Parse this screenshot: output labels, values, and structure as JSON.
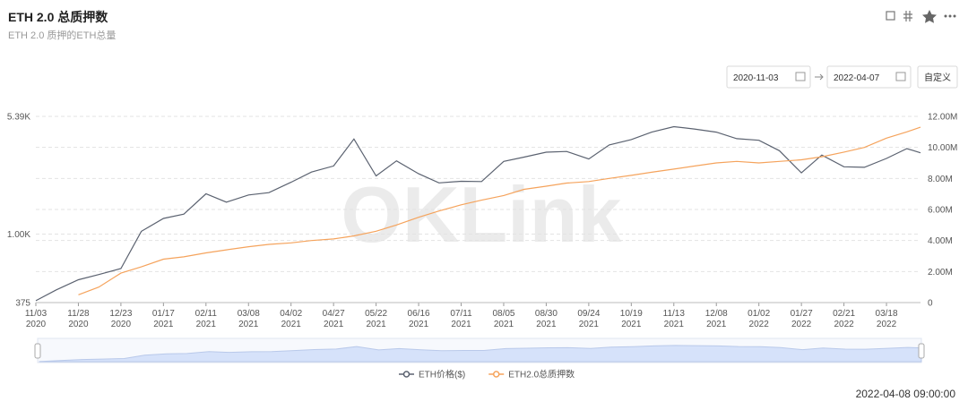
{
  "header": {
    "title": "ETH 2.0 总质押数",
    "subtitle": "ETH 2.0 质押的ETH总量"
  },
  "controls": {
    "start_date": "2020-11-03",
    "end_date": "2022-04-07",
    "custom": "自定义"
  },
  "footer": "2022-04-08 09:00:00",
  "chart_data": {
    "type": "line",
    "watermark": "OKLink",
    "x": [
      "2020-11-03",
      "2020-11-15",
      "2020-11-28",
      "2020-12-10",
      "2020-12-23",
      "2021-01-04",
      "2021-01-17",
      "2021-01-29",
      "2021-02-11",
      "2021-02-23",
      "2021-03-08",
      "2021-03-20",
      "2021-04-02",
      "2021-04-14",
      "2021-04-27",
      "2021-05-09",
      "2021-05-22",
      "2021-06-03",
      "2021-06-16",
      "2021-06-28",
      "2021-07-11",
      "2021-07-23",
      "2021-08-05",
      "2021-08-17",
      "2021-08-30",
      "2021-09-11",
      "2021-09-24",
      "2021-10-06",
      "2021-10-19",
      "2021-10-31",
      "2021-11-13",
      "2021-11-25",
      "2021-12-08",
      "2021-12-20",
      "2022-01-02",
      "2022-01-14",
      "2022-01-27",
      "2022-02-08",
      "2022-02-21",
      "2022-03-05",
      "2022-03-18",
      "2022-03-30",
      "2022-04-07"
    ],
    "xlim": [
      "2020-11-03",
      "2022-04-07"
    ],
    "xticks": [
      {
        "value": "2020-11-03",
        "label": "11/03 2020"
      },
      {
        "value": "2020-11-28",
        "label": "11/28 2020"
      },
      {
        "value": "2020-12-23",
        "label": "12/23 2020"
      },
      {
        "value": "2021-01-17",
        "label": "01/17 2021"
      },
      {
        "value": "2021-02-11",
        "label": "02/11 2021"
      },
      {
        "value": "2021-03-08",
        "label": "03/08 2021"
      },
      {
        "value": "2021-04-02",
        "label": "04/02 2021"
      },
      {
        "value": "2021-04-27",
        "label": "04/27 2021"
      },
      {
        "value": "2021-05-22",
        "label": "05/22 2021"
      },
      {
        "value": "2021-06-16",
        "label": "06/16 2021"
      },
      {
        "value": "2021-07-11",
        "label": "07/11 2021"
      },
      {
        "value": "2021-08-05",
        "label": "08/05 2021"
      },
      {
        "value": "2021-08-30",
        "label": "08/30 2021"
      },
      {
        "value": "2021-09-24",
        "label": "09/24 2021"
      },
      {
        "value": "2021-10-19",
        "label": "10/19 2021"
      },
      {
        "value": "2021-11-13",
        "label": "11/13 2021"
      },
      {
        "value": "2021-12-08",
        "label": "12/08 2021"
      },
      {
        "value": "2022-01-02",
        "label": "01/02 2022"
      },
      {
        "value": "2022-01-27",
        "label": "01/27 2022"
      },
      {
        "value": "2022-02-21",
        "label": "02/21 2022"
      },
      {
        "value": "2022-03-18",
        "label": "03/18 2022"
      }
    ],
    "ylim": [
      375,
      5390
    ],
    "ylog": true,
    "yticks": [
      375,
      {
        "value": 1000,
        "label": "1.00K"
      },
      {
        "value": 5390,
        "label": "5.39K"
      }
    ],
    "y2lim": [
      0,
      12000000
    ],
    "y2ticks": [
      0,
      {
        "value": 2000000,
        "label": "2.00M"
      },
      {
        "value": 4000000,
        "label": "4.00M"
      },
      {
        "value": 6000000,
        "label": "6.00M"
      },
      {
        "value": 8000000,
        "label": "8.00M"
      },
      {
        "value": 10000000,
        "label": "10.00M"
      },
      {
        "value": 12000000,
        "label": "12.00M"
      }
    ],
    "grid": true,
    "legend": "bottom",
    "series": [
      {
        "name": "ETH价格($)",
        "color": "#5b6270",
        "values": [
          385,
          450,
          520,
          560,
          610,
          1040,
          1250,
          1330,
          1780,
          1580,
          1750,
          1810,
          2100,
          2430,
          2650,
          3900,
          2300,
          2850,
          2370,
          2080,
          2130,
          2120,
          2830,
          3010,
          3230,
          3260,
          2930,
          3580,
          3870,
          4300,
          4650,
          4500,
          4300,
          3920,
          3830,
          3300,
          2400,
          3100,
          2620,
          2600,
          2950,
          3400,
          3200
        ]
      },
      {
        "name": "ETH2.0总质押数",
        "color": "#f5a35c",
        "axis": "y2",
        "values": [
          null,
          null,
          500000,
          1000000,
          1900000,
          2300000,
          2800000,
          2950000,
          3200000,
          3400000,
          3600000,
          3750000,
          3850000,
          4000000,
          4100000,
          4300000,
          4600000,
          5000000,
          5500000,
          5900000,
          6300000,
          6600000,
          6900000,
          7300000,
          7500000,
          7700000,
          7800000,
          8000000,
          8200000,
          8400000,
          8600000,
          8800000,
          9000000,
          9100000,
          9000000,
          9100000,
          9200000,
          9400000,
          9700000,
          10000000,
          10600000,
          11000000,
          11300000
        ]
      }
    ]
  }
}
